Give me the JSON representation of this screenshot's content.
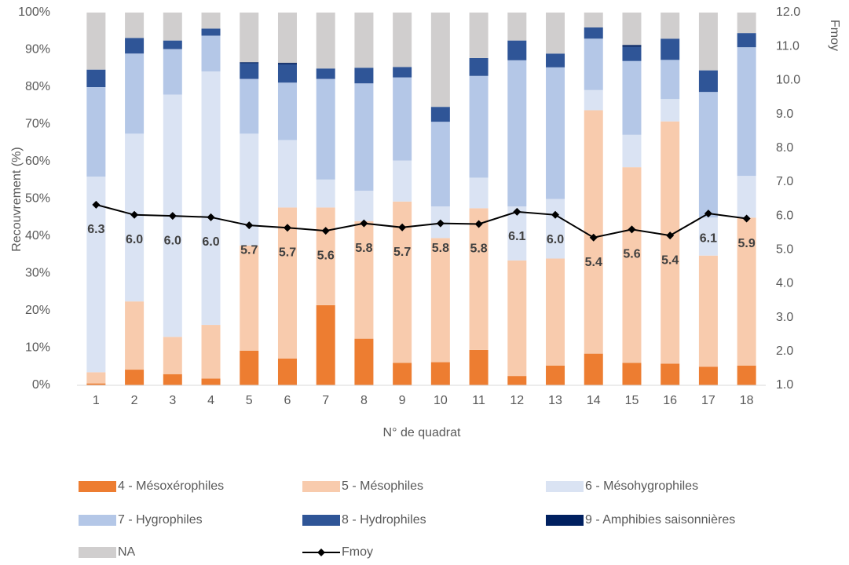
{
  "chart_data": {
    "type": "bar",
    "stacked": true,
    "x_label": "N° de quadrat",
    "y_label": "Recouvrement (%)",
    "y2_label": "Fmoy",
    "categories": [
      "1",
      "2",
      "3",
      "4",
      "5",
      "6",
      "7",
      "8",
      "9",
      "10",
      "11",
      "12",
      "13",
      "14",
      "15",
      "16",
      "17",
      "18"
    ],
    "ylim": [
      0,
      100
    ],
    "yticks": [
      {
        "value": 0,
        "label": "0%"
      },
      {
        "value": 10,
        "label": "10%"
      },
      {
        "value": 20,
        "label": "20%"
      },
      {
        "value": 30,
        "label": "30%"
      },
      {
        "value": 40,
        "label": "40%"
      },
      {
        "value": 50,
        "label": "50%"
      },
      {
        "value": 60,
        "label": "60%"
      },
      {
        "value": 70,
        "label": "70%"
      },
      {
        "value": 80,
        "label": "80%"
      },
      {
        "value": 90,
        "label": "90%"
      },
      {
        "value": 100,
        "label": "100%"
      }
    ],
    "y2lim": [
      1,
      12
    ],
    "y2ticks": [
      {
        "value": 1,
        "label": "1.0"
      },
      {
        "value": 2,
        "label": "2.0"
      },
      {
        "value": 3,
        "label": "3.0"
      },
      {
        "value": 4,
        "label": "4.0"
      },
      {
        "value": 5,
        "label": "5.0"
      },
      {
        "value": 6,
        "label": "6.0"
      },
      {
        "value": 7,
        "label": "7.0"
      },
      {
        "value": 8,
        "label": "8.0"
      },
      {
        "value": 9,
        "label": "9.0"
      },
      {
        "value": 10,
        "label": "10.0"
      },
      {
        "value": 11,
        "label": "11.0"
      },
      {
        "value": 12,
        "label": "12.0"
      }
    ],
    "series": [
      {
        "name": "4 - Mésoxérophiles",
        "color": "#ed7d31",
        "values": [
          0.5,
          4.2,
          3,
          1.8,
          9.3,
          7.2,
          21.5,
          12.5,
          6,
          6.2,
          9.5,
          2.5,
          5.3,
          8.5,
          6,
          5.8,
          5,
          5.3
        ]
      },
      {
        "name": "5 - Mésophiles",
        "color": "#f8cbad",
        "values": [
          3,
          18.3,
          10,
          14.4,
          28.2,
          40.5,
          26.2,
          31.5,
          43.3,
          33.3,
          38,
          31,
          28.7,
          65.3,
          52.5,
          65,
          29.8,
          39.7
        ]
      },
      {
        "name": "6 - Mésohygrophiles",
        "color": "#dae3f3",
        "values": [
          52.5,
          45,
          65,
          68,
          30,
          18.1,
          7.5,
          8.2,
          11,
          8.5,
          8.2,
          14.5,
          16,
          5.4,
          8.7,
          6,
          10.2,
          11.2
        ]
      },
      {
        "name": "7 - Hygrophiles",
        "color": "#b4c7e7",
        "values": [
          24,
          21.5,
          12.2,
          9.6,
          14.7,
          15.4,
          27,
          28.8,
          22.3,
          22.7,
          27.3,
          39.2,
          35.3,
          13.8,
          19.8,
          10.5,
          33.7,
          34.5
        ]
      },
      {
        "name": "8 - Hydrophiles",
        "color": "#2f5597",
        "values": [
          4.7,
          4.2,
          2.3,
          1.9,
          4.2,
          4.9,
          2.8,
          4.2,
          2.8,
          4,
          4.8,
          5.3,
          3.7,
          3,
          3.8,
          5.7,
          5.8,
          3.8
        ]
      },
      {
        "name": "9 - Amphibies saisonnières",
        "color": "#002060",
        "values": [
          0,
          0,
          0,
          0,
          0.3,
          0.4,
          0,
          0,
          0,
          0,
          0,
          0,
          0,
          0,
          0.5,
          0,
          0,
          0
        ]
      },
      {
        "name": "NA",
        "color": "#d0cece",
        "values": [
          15.3,
          6.8,
          7.5,
          4.3,
          13.3,
          13.5,
          15,
          14.8,
          14.6,
          25.3,
          12.2,
          7.5,
          11,
          4,
          8.7,
          7,
          15.5,
          5.5
        ]
      },
      {
        "name": "Fmoy",
        "type": "line",
        "axis": "y2",
        "color": "#000000",
        "values": [
          6.33,
          6.03,
          6.0,
          5.96,
          5.72,
          5.65,
          5.56,
          5.78,
          5.66,
          5.78,
          5.76,
          6.12,
          6.03,
          5.36,
          5.6,
          5.42,
          6.07,
          5.92
        ],
        "value_labels": [
          "6.3",
          "6.0",
          "6.0",
          "6.0",
          "5.7",
          "5.7",
          "5.6",
          "5.8",
          "5.7",
          "5.8",
          "5.8",
          "6.1",
          "6.0",
          "5.4",
          "5.6",
          "5.4",
          "6.1",
          "5.9"
        ]
      }
    ]
  }
}
